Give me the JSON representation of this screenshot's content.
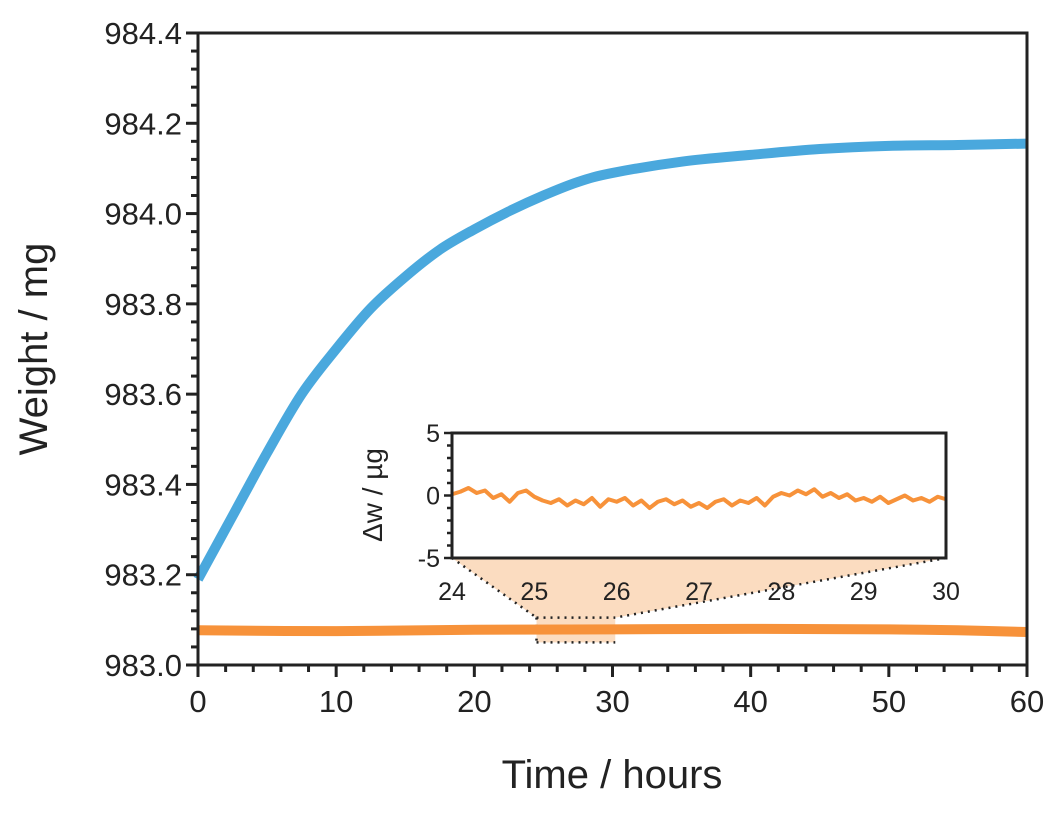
{
  "chart_data": {
    "type": "line",
    "main": {
      "xlabel": "Time / hours",
      "ylabel": "Weight / mg",
      "xlim": [
        0,
        60
      ],
      "ylim": [
        983.0,
        984.4
      ],
      "xticks": [
        "0",
        "10",
        "20",
        "30",
        "40",
        "50",
        "60"
      ],
      "yticks": [
        "983.0",
        "983.2",
        "983.4",
        "983.6",
        "983.8",
        "984.0",
        "984.2",
        "984.4"
      ],
      "grid": false,
      "series": [
        {
          "color": "#4aa8dd",
          "x": [
            0,
            2.5,
            5,
            7.5,
            10,
            12.5,
            15,
            17.5,
            20,
            22.5,
            25,
            27.5,
            30,
            35,
            40,
            45,
            50,
            55,
            60
          ],
          "y": [
            983.19,
            983.33,
            983.47,
            983.6,
            983.7,
            983.79,
            983.86,
            983.92,
            983.965,
            984.005,
            984.04,
            984.07,
            984.09,
            984.115,
            984.13,
            984.143,
            984.15,
            984.152,
            984.155
          ]
        },
        {
          "color": "#f7923a",
          "x": [
            0,
            10,
            20,
            30,
            40,
            50,
            55,
            60
          ],
          "y": [
            983.077,
            983.075,
            983.078,
            983.079,
            983.08,
            983.079,
            983.077,
            983.073
          ]
        }
      ],
      "zoom_region": {
        "x": [
          24.5,
          30.2
        ],
        "y": [
          983.05,
          983.105
        ]
      }
    },
    "inset": {
      "xlabel": "",
      "ylabel": "Δw / µg",
      "xlim": [
        24,
        30
      ],
      "ylim": [
        -5,
        5
      ],
      "xticks": [
        "24",
        "25",
        "26",
        "27",
        "28",
        "29",
        "30"
      ],
      "yticks": [
        "-5",
        "0",
        "5"
      ],
      "series": [
        {
          "color": "#f7923a",
          "x": [
            24.0,
            24.1,
            24.2,
            24.3,
            24.4,
            24.5,
            24.6,
            24.7,
            24.8,
            24.9,
            25.0,
            25.1,
            25.2,
            25.3,
            25.4,
            25.5,
            25.6,
            25.7,
            25.8,
            25.9,
            26.0,
            26.1,
            26.2,
            26.3,
            26.4,
            26.5,
            26.6,
            26.7,
            26.8,
            26.9,
            27.0,
            27.1,
            27.2,
            27.3,
            27.4,
            27.5,
            27.6,
            27.7,
            27.8,
            27.9,
            28.0,
            28.1,
            28.2,
            28.3,
            28.4,
            28.5,
            28.6,
            28.7,
            28.8,
            28.9,
            29.0,
            29.1,
            29.2,
            29.3,
            29.4,
            29.5,
            29.6,
            29.7,
            29.8,
            29.9,
            30.0
          ],
          "y": [
            0.1,
            0.3,
            0.6,
            0.2,
            0.4,
            -0.2,
            0.1,
            -0.5,
            0.2,
            0.4,
            -0.1,
            -0.4,
            -0.6,
            -0.3,
            -0.8,
            -0.4,
            -0.7,
            -0.2,
            -0.9,
            -0.3,
            -0.5,
            -0.2,
            -0.8,
            -0.4,
            -1.0,
            -0.5,
            -0.3,
            -0.7,
            -0.4,
            -0.9,
            -0.6,
            -1.0,
            -0.5,
            -0.3,
            -0.8,
            -0.4,
            -0.6,
            -0.2,
            -0.8,
            -0.1,
            0.2,
            0.0,
            0.4,
            0.1,
            0.5,
            -0.1,
            0.2,
            -0.2,
            0.1,
            -0.4,
            -0.2,
            -0.5,
            -0.1,
            -0.6,
            -0.3,
            0.0,
            -0.4,
            -0.2,
            -0.5,
            -0.1,
            -0.3
          ]
        }
      ]
    }
  }
}
